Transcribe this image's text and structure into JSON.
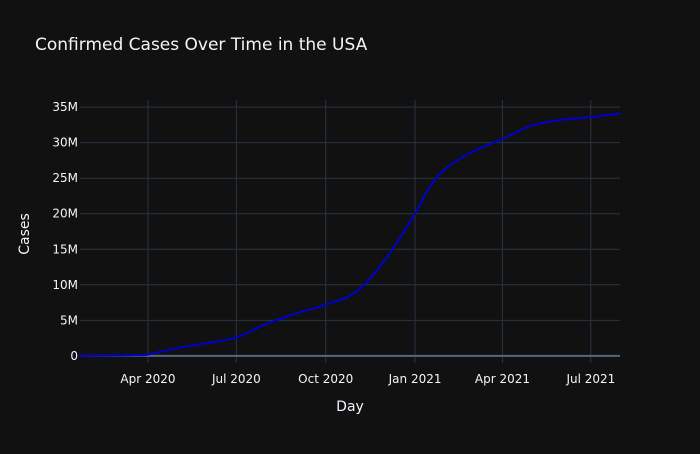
{
  "chart_data": {
    "type": "line",
    "title": "Confirmed Cases Over Time in the USA",
    "xlabel": "Day",
    "ylabel": "Cases",
    "x_type": "date",
    "xlim": [
      "2020-01-22",
      "2021-07-31"
    ],
    "ylim": [
      -1000000,
      36000000
    ],
    "xticks": [
      {
        "date": "2020-04-01",
        "label": "Apr 2020"
      },
      {
        "date": "2020-07-01",
        "label": "Jul 2020"
      },
      {
        "date": "2020-10-01",
        "label": "Oct 2020"
      },
      {
        "date": "2021-01-01",
        "label": "Jan 2021"
      },
      {
        "date": "2021-04-01",
        "label": "Apr 2021"
      },
      {
        "date": "2021-07-01",
        "label": "Jul 2021"
      }
    ],
    "yticks": [
      {
        "value": 0,
        "label": "0"
      },
      {
        "value": 5000000,
        "label": "5M"
      },
      {
        "value": 10000000,
        "label": "10M"
      },
      {
        "value": 15000000,
        "label": "15M"
      },
      {
        "value": 20000000,
        "label": "20M"
      },
      {
        "value": 25000000,
        "label": "25M"
      },
      {
        "value": 30000000,
        "label": "30M"
      },
      {
        "value": 35000000,
        "label": "35M"
      }
    ],
    "grid": true,
    "legend": "none",
    "series": [
      {
        "color": "#0000cc",
        "points": [
          {
            "x": "2020-01-22",
            "y": 0
          },
          {
            "x": "2020-03-01",
            "y": 50000
          },
          {
            "x": "2020-03-20",
            "y": 100000
          },
          {
            "x": "2020-04-01",
            "y": 200000
          },
          {
            "x": "2020-05-01",
            "y": 1100000
          },
          {
            "x": "2020-06-01",
            "y": 1800000
          },
          {
            "x": "2020-07-01",
            "y": 2600000
          },
          {
            "x": "2020-08-01",
            "y": 4500000
          },
          {
            "x": "2020-09-01",
            "y": 6000000
          },
          {
            "x": "2020-10-01",
            "y": 7200000
          },
          {
            "x": "2020-11-01",
            "y": 9000000
          },
          {
            "x": "2020-12-01",
            "y": 13500000
          },
          {
            "x": "2021-01-01",
            "y": 20000000
          },
          {
            "x": "2021-01-15",
            "y": 23500000
          },
          {
            "x": "2021-02-01",
            "y": 26300000
          },
          {
            "x": "2021-03-01",
            "y": 28700000
          },
          {
            "x": "2021-04-01",
            "y": 30500000
          },
          {
            "x": "2021-05-01",
            "y": 32400000
          },
          {
            "x": "2021-06-01",
            "y": 33200000
          },
          {
            "x": "2021-07-01",
            "y": 33600000
          },
          {
            "x": "2021-07-31",
            "y": 34100000
          }
        ]
      }
    ]
  }
}
